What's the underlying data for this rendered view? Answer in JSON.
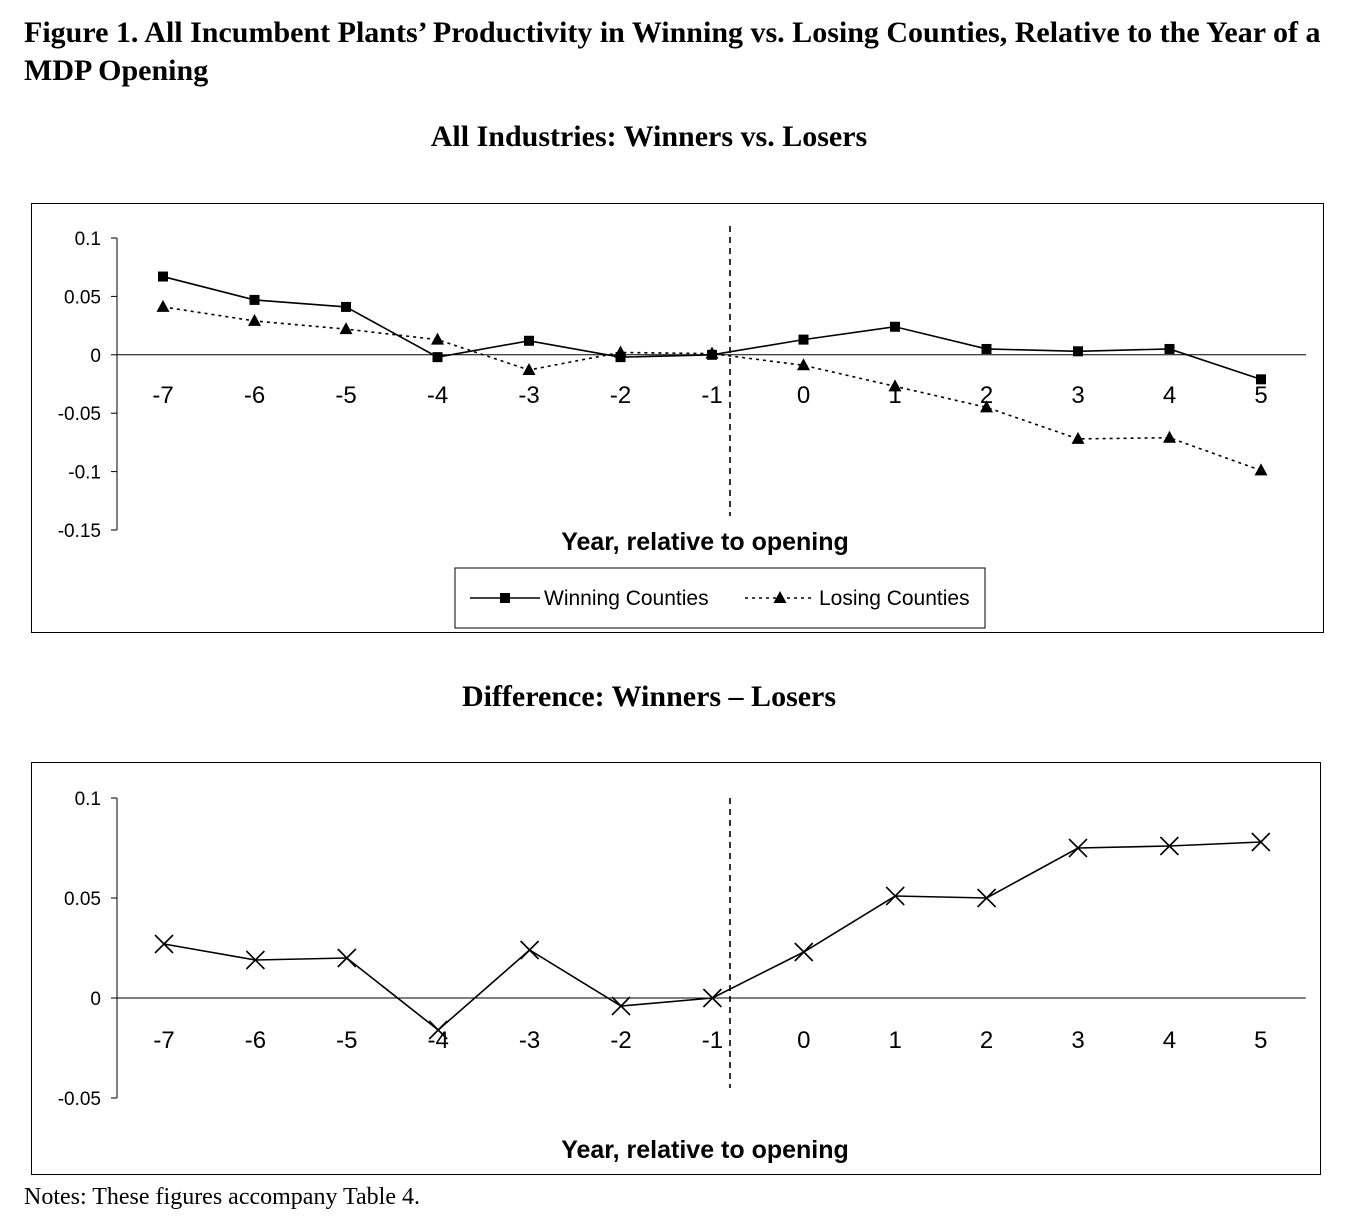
{
  "figure_title": "Figure 1. All Incumbent Plants’ Productivity in Winning vs. Losing Counties, Relative to the Year of a MDP Opening",
  "notes": "Notes: These figures accompany Table 4.",
  "chart_data": [
    {
      "type": "line",
      "title": "All Industries: Winners vs. Losers",
      "xlabel": "Year, relative to opening",
      "ylabel": "",
      "categories": [
        "-7",
        "-6",
        "-5",
        "-4",
        "-3",
        "-2",
        "-1",
        "0",
        "1",
        "2",
        "3",
        "4",
        "5"
      ],
      "y_ticks": [
        "0.1",
        "0.05",
        "0",
        "-0.05",
        "-0.1",
        "-0.15"
      ],
      "ylim": [
        -0.15,
        0.1
      ],
      "grid": false,
      "event_marker": "dashed vertical line between -1 and 0",
      "legend_position": "bottom-center",
      "series": [
        {
          "name": "Winning Counties",
          "line_style": "solid",
          "marker": "square",
          "values": [
            0.067,
            0.047,
            0.041,
            -0.002,
            0.012,
            -0.002,
            0.0,
            0.013,
            0.024,
            0.005,
            0.003,
            0.005,
            -0.021
          ]
        },
        {
          "name": "Losing Counties",
          "line_style": "dotted",
          "marker": "triangle",
          "values": [
            0.041,
            0.029,
            0.022,
            0.013,
            -0.013,
            0.002,
            0.001,
            -0.009,
            -0.027,
            -0.045,
            -0.072,
            -0.071,
            -0.099
          ]
        }
      ]
    },
    {
      "type": "line",
      "title": "Difference: Winners – Losers",
      "xlabel": "Year, relative to opening",
      "ylabel": "",
      "categories": [
        "-7",
        "-6",
        "-5",
        "-4",
        "-3",
        "-2",
        "-1",
        "0",
        "1",
        "2",
        "3",
        "4",
        "5"
      ],
      "y_ticks": [
        "0.1",
        "0.05",
        "0",
        "-0.05"
      ],
      "ylim": [
        -0.05,
        0.1
      ],
      "grid": false,
      "event_marker": "dashed vertical line between -1 and 0",
      "series": [
        {
          "line_style": "solid",
          "marker": "x",
          "values": [
            0.027,
            0.019,
            0.02,
            -0.016,
            0.024,
            -0.004,
            0.0,
            0.023,
            0.051,
            0.05,
            0.075,
            0.076,
            0.078
          ]
        }
      ]
    }
  ]
}
